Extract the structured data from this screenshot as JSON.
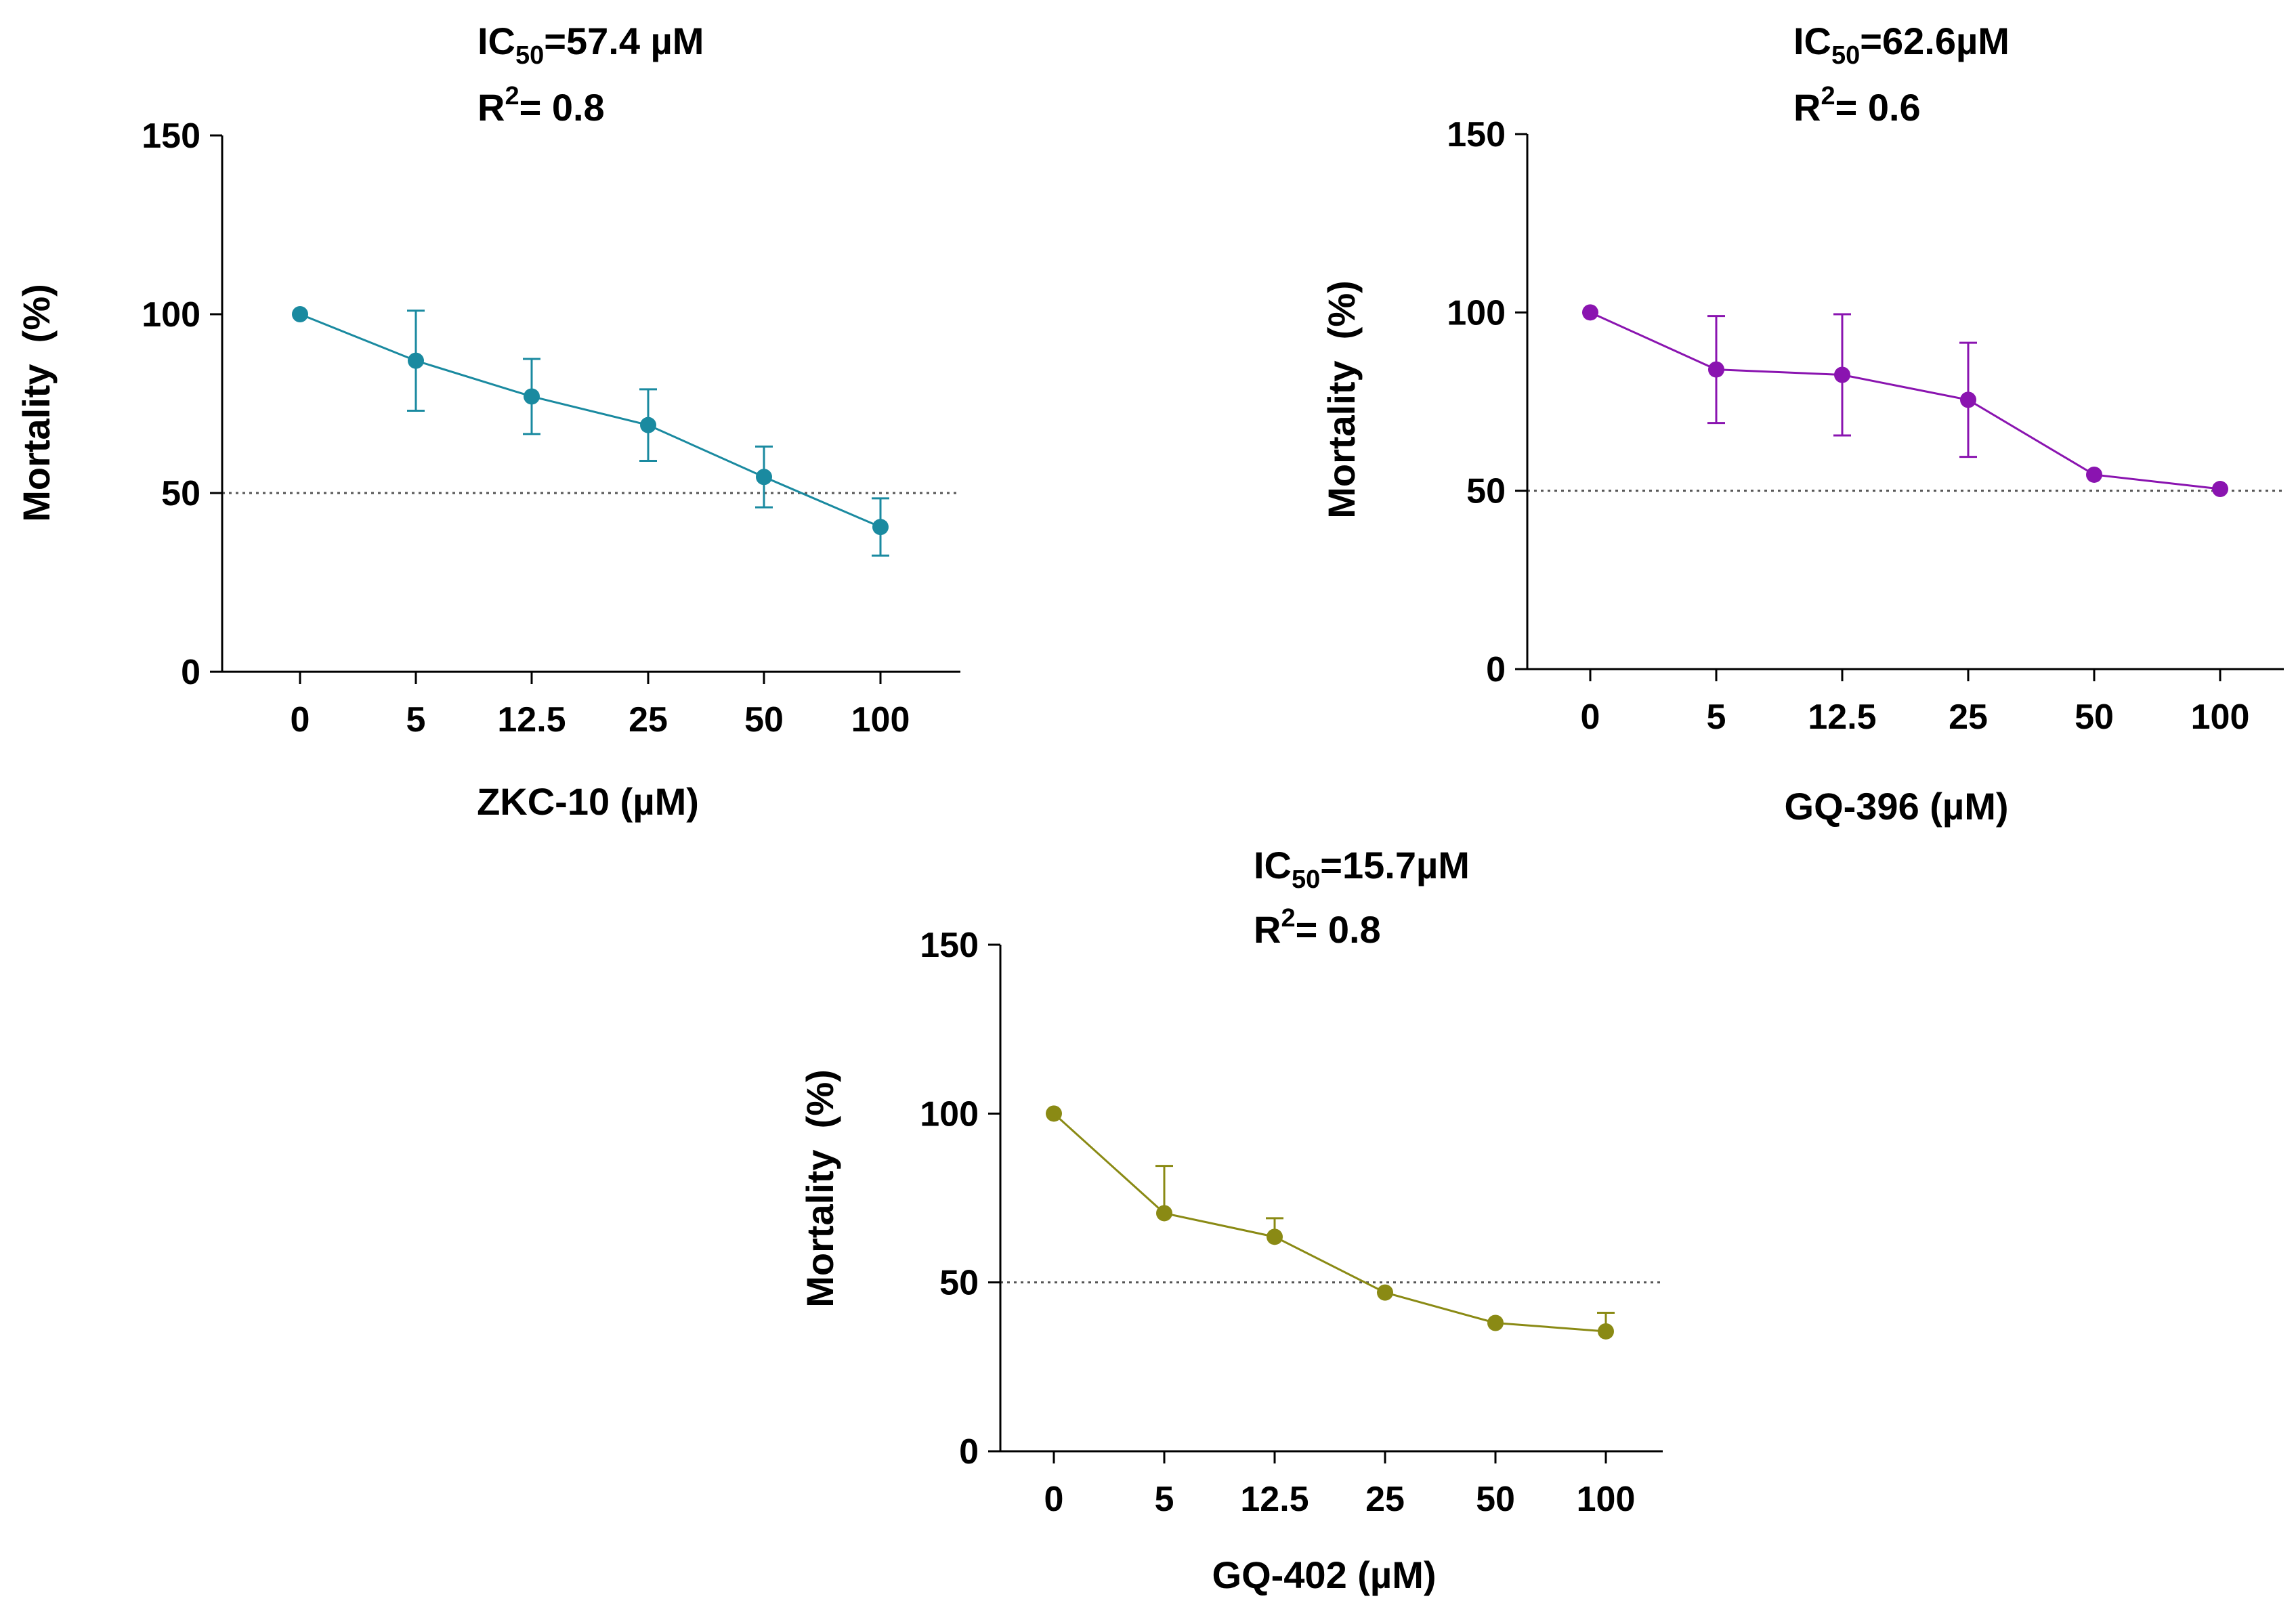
{
  "chart_data": [
    {
      "type": "line",
      "categories": [
        "0",
        "5",
        "12.5",
        "25",
        "50",
        "100"
      ],
      "series": [
        {
          "values": [
            100,
            87,
            77,
            69,
            54.5,
            40.5
          ],
          "errors": [
            0,
            14,
            10.5,
            10,
            8.5,
            8
          ],
          "error_style": "both",
          "color": "#1a8aa0"
        }
      ],
      "annotation": {
        "ic50_value": "=57.4 µM",
        "r2_value": "= 0.8"
      },
      "xlabel": "ZKC-10 (µM)",
      "ylabel": "Mortality  (%)",
      "ylim": [
        0,
        150
      ],
      "yticks": [
        "0",
        "50",
        "100",
        "150"
      ],
      "reference_line": 50
    },
    {
      "type": "line",
      "categories": [
        "0",
        "5",
        "12.5",
        "25",
        "50",
        "100"
      ],
      "series": [
        {
          "values": [
            100,
            84,
            82.5,
            75.5,
            54.5,
            50.5
          ],
          "errors": [
            0,
            15,
            17,
            16,
            0,
            0
          ],
          "error_style": "both",
          "color": "#8a14b0"
        }
      ],
      "annotation": {
        "ic50_value": "=62.6µM",
        "r2_value": "= 0.6"
      },
      "xlabel": "GQ-396 (µM)",
      "ylabel": "Mortality  (%)",
      "ylim": [
        0,
        150
      ],
      "yticks": [
        "0",
        "50",
        "100",
        "150"
      ],
      "reference_line": 50
    },
    {
      "type": "line",
      "categories": [
        "0",
        "5",
        "12.5",
        "25",
        "50",
        "100"
      ],
      "series": [
        {
          "values": [
            100,
            70.5,
            63.5,
            47,
            38,
            35.5
          ],
          "errors": [
            0,
            14,
            5.5,
            0,
            0,
            5.5
          ],
          "error_style": "up",
          "color": "#8a8a14"
        }
      ],
      "annotation": {
        "ic50_value": "=15.7µM",
        "r2_value": "= 0.8"
      },
      "xlabel": "GQ-402 (µM)",
      "ylabel": "Mortality  (%)",
      "ylim": [
        0,
        150
      ],
      "yticks": [
        "0",
        "50",
        "100",
        "150"
      ],
      "reference_line": 50
    }
  ]
}
